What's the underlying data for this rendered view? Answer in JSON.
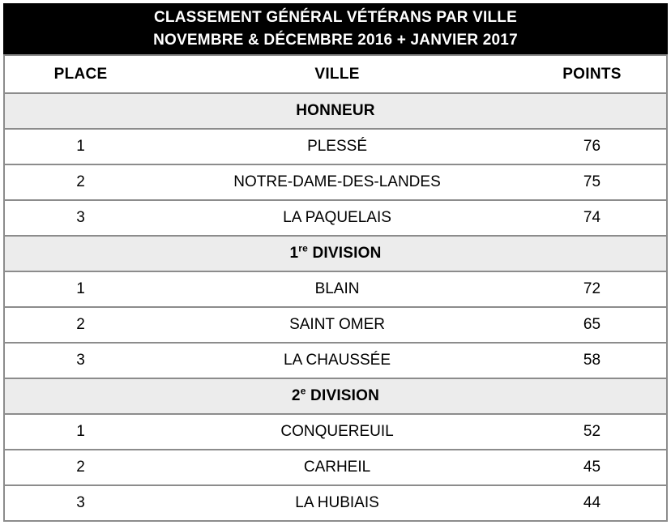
{
  "title": {
    "line1": "CLASSEMENT GÉNÉRAL VÉTÉRANS PAR VILLE",
    "line2": "NOVEMBRE & DÉCEMBRE 2016 + JANVIER 2017"
  },
  "columns": {
    "place": "PLACE",
    "ville": "VILLE",
    "points": "POINTS"
  },
  "sections": [
    {
      "label": {
        "base": "HONNEUR",
        "sup": "",
        "rest": ""
      },
      "rows": [
        {
          "place": "1",
          "ville": "PLESSÉ",
          "points": "76"
        },
        {
          "place": "2",
          "ville": "NOTRE-DAME-DES-LANDES",
          "points": "75"
        },
        {
          "place": "3",
          "ville": "LA PAQUELAIS",
          "points": "74"
        }
      ]
    },
    {
      "label": {
        "base": "1",
        "sup": "re",
        "rest": " DIVISION"
      },
      "rows": [
        {
          "place": "1",
          "ville": "BLAIN",
          "points": "72"
        },
        {
          "place": "2",
          "ville": "SAINT OMER",
          "points": "65"
        },
        {
          "place": "3",
          "ville": "LA CHAUSSÉE",
          "points": "58"
        }
      ]
    },
    {
      "label": {
        "base": "2",
        "sup": "e",
        "rest": " DIVISION"
      },
      "rows": [
        {
          "place": "1",
          "ville": "CONQUEREUIL",
          "points": "52"
        },
        {
          "place": "2",
          "ville": "CARHEIL",
          "points": "45"
        },
        {
          "place": "3",
          "ville": "LA HUBIAIS",
          "points": "44"
        }
      ]
    }
  ],
  "colors": {
    "title_bg": "#000000",
    "title_text": "#ffffff",
    "section_bg": "#ececec",
    "border": "#8c8c8c",
    "text": "#000000"
  }
}
